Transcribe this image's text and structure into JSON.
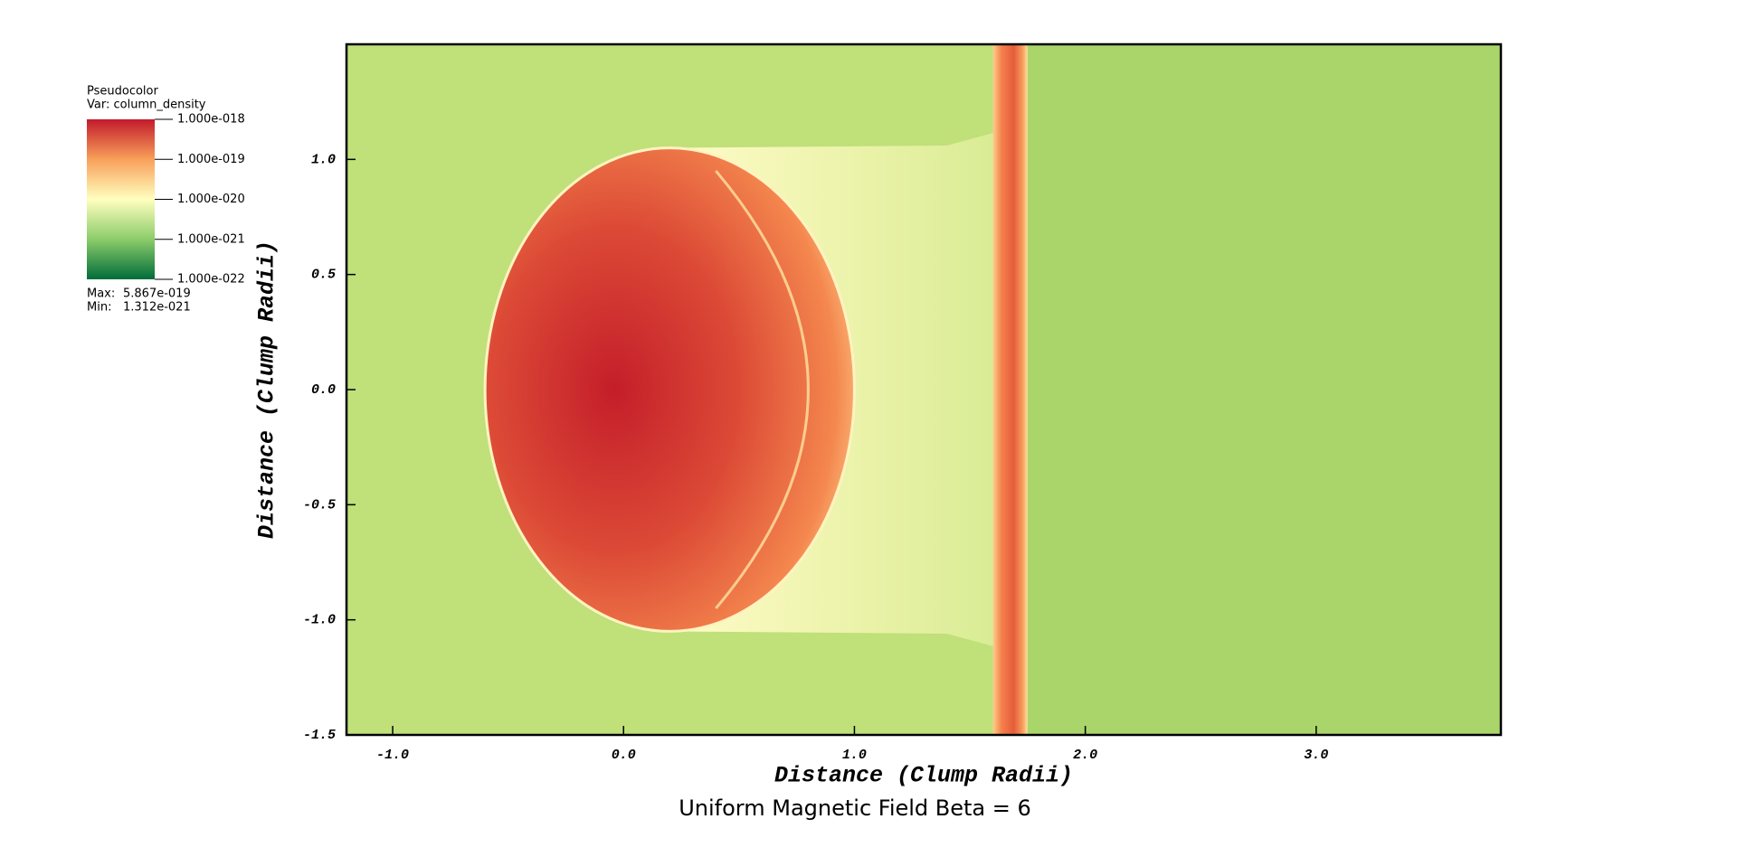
{
  "chart_data": {
    "type": "pseudocolor",
    "title": "Uniform Magnetic Field Beta = 6",
    "xlabel": "Distance (Clump Radii)",
    "ylabel": "Distance (Clump Radii)",
    "xlim": [
      -1.2,
      3.8
    ],
    "ylim": [
      -1.5,
      1.5
    ],
    "xticks": [
      {
        "value": -1,
        "label": "-1.0"
      },
      {
        "value": 0,
        "label": "0.0"
      },
      {
        "value": 1,
        "label": "1.0"
      },
      {
        "value": 2,
        "label": "2.0"
      },
      {
        "value": 3,
        "label": "3.0"
      }
    ],
    "yticks": [
      {
        "value": 1,
        "label": "1.0"
      },
      {
        "value": 0.5,
        "label": "0.5"
      },
      {
        "value": 0,
        "label": "0.0"
      },
      {
        "value": -0.5,
        "label": "-0.5"
      },
      {
        "value": -1,
        "label": "-1.0"
      },
      {
        "value": -1.5,
        "label": "-1.5"
      }
    ],
    "legend": {
      "plot_type": "Pseudocolor",
      "variable": "Var: column_density",
      "log_scale": true,
      "range": [
        1e-22,
        1e-18
      ],
      "ticks": [
        {
          "value": 1e-18,
          "label": "1.000e-018"
        },
        {
          "value": 1e-19,
          "label": "1.000e-019"
        },
        {
          "value": 1e-20,
          "label": "1.000e-020"
        },
        {
          "value": 1e-21,
          "label": "1.000e-021"
        },
        {
          "value": 1e-22,
          "label": "1.000e-022"
        }
      ],
      "colormap": [
        "#006d3a",
        "#8ccc6a",
        "#ffffbf",
        "#f8a05a",
        "#c21a2b"
      ],
      "max_label": "Max:",
      "max": {
        "value": 5.867e-19,
        "label": "5.867e-019"
      },
      "min_label": "Min:",
      "min": {
        "value": 1.312e-21,
        "label": "1.312e-021"
      }
    }
  }
}
